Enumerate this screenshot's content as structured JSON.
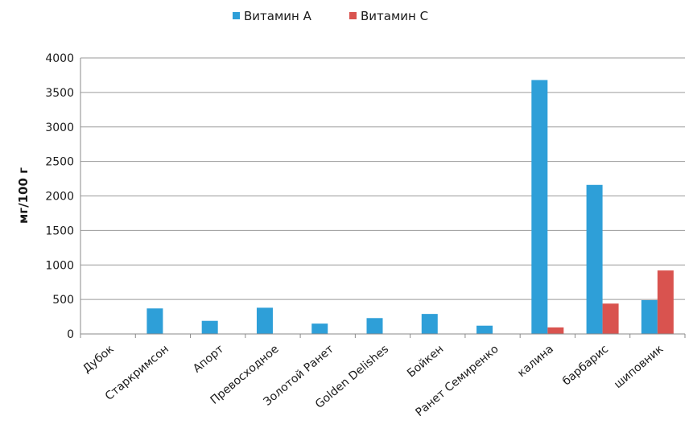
{
  "chart_data": {
    "type": "bar",
    "title": "",
    "xlabel": "",
    "ylabel": "мг/100 г",
    "ylim": [
      0,
      4000
    ],
    "yticks": [
      0,
      500,
      1000,
      1500,
      2000,
      2500,
      3000,
      3500,
      4000
    ],
    "grid": true,
    "legend_position": "top-center",
    "categories": [
      "Дубок",
      "Старкримсон",
      "Апорт",
      "Превосходное",
      "Золотой Ранет",
      "Golden Delishes",
      "Бойкен",
      "Ранет Семиренко",
      "калина",
      "барбарис",
      "шиповник"
    ],
    "series": [
      {
        "name": "Витамин А",
        "color": "#2e9fd8",
        "values": [
          0,
          370,
          190,
          380,
          150,
          230,
          290,
          120,
          3680,
          2160,
          490
        ]
      },
      {
        "name": "Витамин С",
        "color": "#d9534f",
        "values": [
          0,
          0,
          0,
          0,
          0,
          0,
          0,
          0,
          95,
          440,
          920
        ]
      }
    ]
  }
}
